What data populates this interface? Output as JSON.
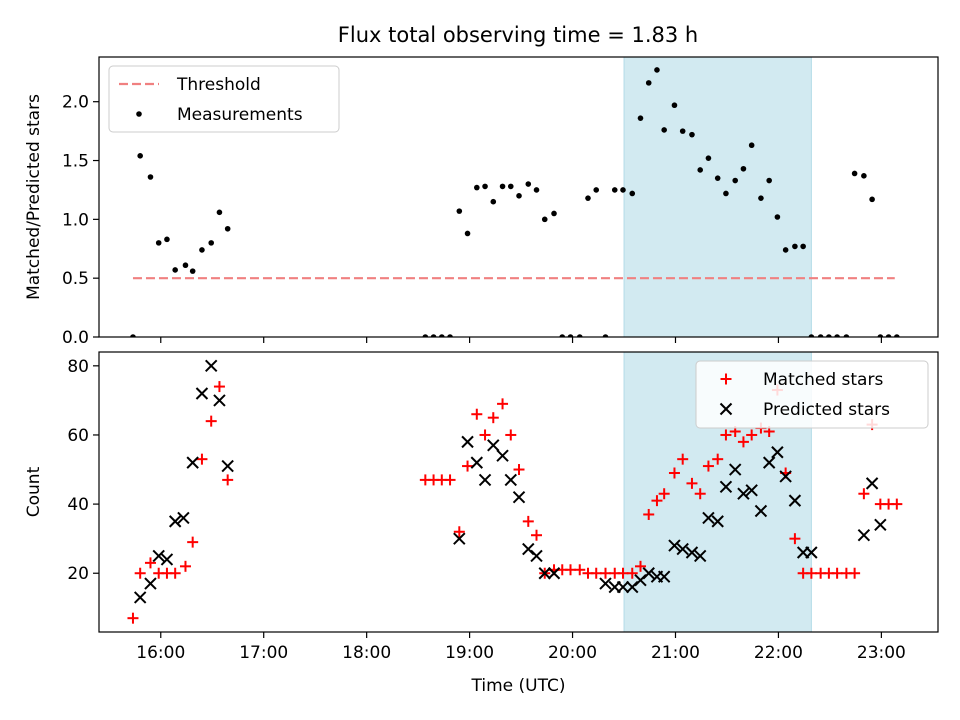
{
  "chart_data": [
    {
      "type": "scatter",
      "title": "Flux total observing time = 1.83 h",
      "xlabel": "",
      "ylabel": "Matched/Predicted stars",
      "xlim": [
        15.4,
        23.55
      ],
      "ylim": [
        0,
        2.38
      ],
      "yticks": [
        0.0,
        0.5,
        1.0,
        1.5,
        2.0
      ],
      "ytick_labels": [
        "0.0",
        "0.5",
        "1.0",
        "1.5",
        "2.0"
      ],
      "highlight_span": [
        20.5,
        22.32
      ],
      "highlight_color": "#add8e6",
      "legend_position": "upper left",
      "series": [
        {
          "name": "Threshold",
          "kind": "dashed-line",
          "color": "#f08080",
          "x": [
            15.73,
            23.13
          ],
          "y": [
            0.5,
            0.5
          ]
        },
        {
          "name": "Measurements",
          "kind": "dot",
          "color": "#000000",
          "x": [
            15.73,
            15.8,
            15.9,
            15.98,
            16.06,
            16.14,
            16.24,
            16.31,
            16.4,
            16.49,
            16.57,
            16.65,
            18.57,
            18.65,
            18.73,
            18.81,
            18.9,
            18.98,
            19.07,
            19.15,
            19.23,
            19.32,
            19.4,
            19.48,
            19.57,
            19.65,
            19.73,
            19.82,
            19.9,
            19.98,
            20.07,
            20.15,
            20.23,
            20.32,
            20.41,
            20.49,
            20.58,
            20.66,
            20.74,
            20.82,
            20.89,
            20.99,
            21.07,
            21.16,
            21.24,
            21.32,
            21.41,
            21.49,
            21.58,
            21.66,
            21.74,
            21.83,
            21.91,
            21.99,
            22.07,
            22.16,
            22.24,
            22.32,
            22.41,
            22.49,
            22.57,
            22.66,
            22.74,
            22.83,
            22.91,
            22.99,
            23.07,
            23.15
          ],
          "y": [
            0.0,
            1.54,
            1.36,
            0.8,
            0.83,
            0.57,
            0.61,
            0.56,
            0.74,
            0.8,
            1.06,
            0.92,
            0.0,
            0.0,
            0.0,
            0.0,
            1.07,
            0.88,
            1.27,
            1.28,
            1.15,
            1.28,
            1.28,
            1.2,
            1.3,
            1.25,
            1.0,
            1.05,
            0.0,
            0.0,
            0.0,
            1.18,
            1.25,
            0.0,
            1.25,
            1.25,
            1.22,
            1.86,
            2.16,
            2.27,
            1.76,
            1.97,
            1.75,
            1.72,
            1.42,
            1.52,
            1.35,
            1.22,
            1.33,
            1.43,
            1.63,
            1.18,
            1.33,
            1.02,
            0.74,
            0.77,
            0.77,
            0.0,
            0.0,
            0.0,
            0.0,
            0.0,
            1.39,
            1.37,
            1.17,
            0.0,
            0.0,
            0.0
          ]
        }
      ]
    },
    {
      "type": "scatter",
      "title": "",
      "xlabel": "Time (UTC)",
      "ylabel": "Count",
      "xlim": [
        15.4,
        23.55
      ],
      "ylim": [
        3,
        84
      ],
      "yticks": [
        20,
        40,
        60,
        80
      ],
      "ytick_labels": [
        "20",
        "40",
        "60",
        "80"
      ],
      "xticks": [
        16,
        17,
        18,
        19,
        20,
        21,
        22,
        23
      ],
      "xtick_labels": [
        "16:00",
        "17:00",
        "18:00",
        "19:00",
        "20:00",
        "21:00",
        "22:00",
        "23:00"
      ],
      "highlight_span": [
        20.5,
        22.32
      ],
      "highlight_color": "#add8e6",
      "legend_position": "upper right",
      "series": [
        {
          "name": "Matched stars",
          "kind": "plus",
          "color": "#ff0000",
          "x": [
            15.73,
            15.8,
            15.9,
            15.98,
            16.06,
            16.14,
            16.24,
            16.31,
            16.4,
            16.49,
            16.57,
            16.65,
            18.57,
            18.65,
            18.73,
            18.81,
            18.9,
            18.98,
            19.07,
            19.15,
            19.23,
            19.32,
            19.4,
            19.48,
            19.57,
            19.65,
            19.73,
            19.82,
            19.9,
            19.98,
            20.07,
            20.15,
            20.23,
            20.32,
            20.41,
            20.49,
            20.58,
            20.66,
            20.74,
            20.82,
            20.89,
            20.99,
            21.07,
            21.16,
            21.24,
            21.32,
            21.41,
            21.49,
            21.58,
            21.66,
            21.74,
            21.83,
            21.91,
            21.99,
            22.07,
            22.16,
            22.24,
            22.32,
            22.41,
            22.49,
            22.57,
            22.66,
            22.74,
            22.83,
            22.91,
            22.99,
            23.07,
            23.15
          ],
          "y": [
            7,
            20,
            23,
            20,
            20,
            20,
            22,
            29,
            53,
            64,
            74,
            47,
            47,
            47,
            47,
            47,
            32,
            51,
            66,
            60,
            65,
            69,
            60,
            50,
            35,
            31,
            20,
            21,
            21,
            21,
            21,
            20,
            20,
            20,
            20,
            20,
            20,
            22,
            37,
            41,
            43,
            49,
            53,
            46,
            43,
            51,
            53,
            60,
            61,
            58,
            60,
            62,
            61,
            73,
            49,
            30,
            20,
            20,
            20,
            20,
            20,
            20,
            20,
            43,
            63,
            40,
            40,
            40
          ]
        },
        {
          "name": "Predicted stars",
          "kind": "x",
          "color": "#000000",
          "x": [
            15.8,
            15.9,
            15.98,
            16.06,
            16.14,
            16.22,
            16.31,
            16.4,
            16.49,
            16.57,
            16.65,
            18.9,
            18.98,
            19.07,
            19.15,
            19.23,
            19.32,
            19.4,
            19.48,
            19.57,
            19.65,
            19.73,
            19.82,
            20.32,
            20.41,
            20.49,
            20.58,
            20.66,
            20.74,
            20.82,
            20.89,
            20.99,
            21.07,
            21.16,
            21.24,
            21.32,
            21.41,
            21.49,
            21.58,
            21.66,
            21.74,
            21.83,
            21.91,
            21.99,
            22.07,
            22.16,
            22.24,
            22.32,
            22.83,
            22.91,
            22.99
          ],
          "y": [
            13,
            17,
            25,
            24,
            35,
            36,
            52,
            72,
            80,
            70,
            51,
            30,
            58,
            52,
            47,
            57,
            54,
            47,
            42,
            27,
            25,
            20,
            20,
            17,
            16,
            16,
            16,
            18,
            20,
            19,
            19,
            28,
            27,
            26,
            25,
            36,
            35,
            45,
            50,
            43,
            44,
            38,
            52,
            55,
            48,
            41,
            26,
            26,
            31,
            46,
            34
          ]
        }
      ]
    }
  ]
}
